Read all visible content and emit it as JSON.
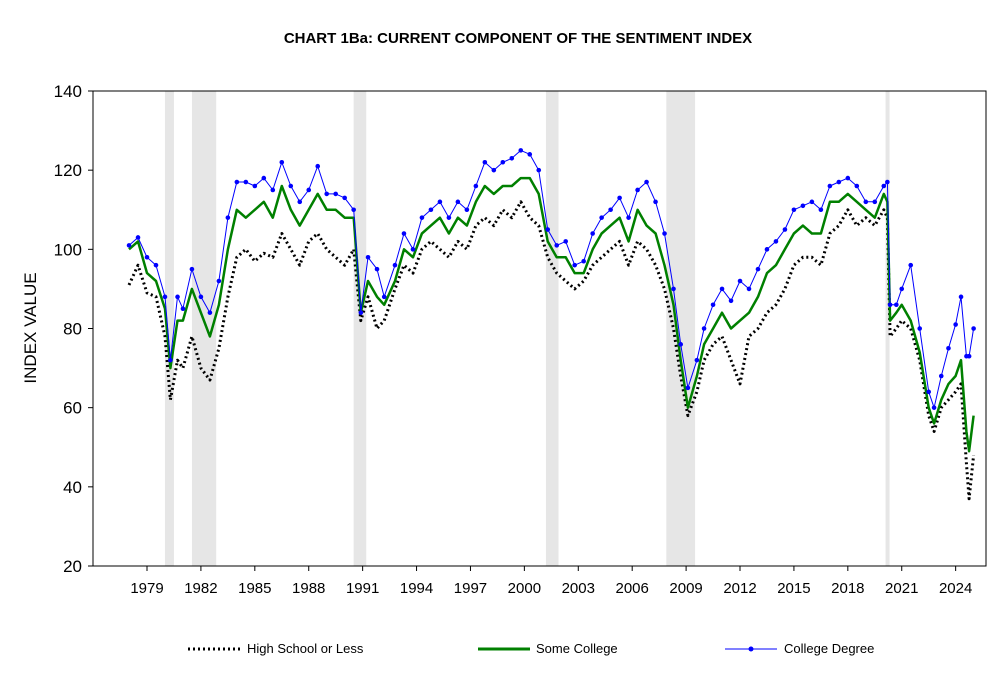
{
  "chart_data": {
    "type": "line",
    "title": "CHART 1Ba: CURRENT COMPONENT OF THE SENTIMENT INDEX",
    "xlabel": "",
    "ylabel": "INDEX VALUE",
    "ylim": [
      20,
      140
    ],
    "yticks": [
      "20",
      "40",
      "60",
      "80",
      "100",
      "120",
      "140"
    ],
    "xticks": [
      "1979",
      "1982",
      "1985",
      "1988",
      "1991",
      "1994",
      "1997",
      "2000",
      "2003",
      "2006",
      "2009",
      "2012",
      "2015",
      "2018",
      "2021",
      "2024"
    ],
    "grid": false,
    "legend_position": "bottom",
    "recessions": [
      [
        1980.0,
        1980.5
      ],
      [
        1981.5,
        1982.85
      ],
      [
        1990.5,
        1991.2
      ],
      [
        2001.2,
        2001.9
      ],
      [
        2007.9,
        2009.5
      ],
      [
        2020.1,
        2020.3
      ]
    ],
    "x": [
      1978.0,
      1978.5,
      1979.0,
      1979.5,
      1980.0,
      1980.3,
      1980.7,
      1981.0,
      1981.5,
      1982.0,
      1982.5,
      1983.0,
      1983.5,
      1984.0,
      1984.5,
      1985.0,
      1985.5,
      1986.0,
      1986.5,
      1987.0,
      1987.5,
      1988.0,
      1988.5,
      1989.0,
      1989.5,
      1990.0,
      1990.5,
      1990.9,
      1991.3,
      1991.8,
      1992.2,
      1992.8,
      1993.3,
      1993.8,
      1994.3,
      1994.8,
      1995.3,
      1995.8,
      1996.3,
      1996.8,
      1997.3,
      1997.8,
      1998.3,
      1998.8,
      1999.3,
      1999.8,
      2000.3,
      2000.8,
      2001.3,
      2001.8,
      2002.3,
      2002.8,
      2003.3,
      2003.8,
      2004.3,
      2004.8,
      2005.3,
      2005.8,
      2006.3,
      2006.8,
      2007.3,
      2007.8,
      2008.3,
      2008.7,
      2009.1,
      2009.6,
      2010.0,
      2010.5,
      2011.0,
      2011.5,
      2012.0,
      2012.5,
      2013.0,
      2013.5,
      2014.0,
      2014.5,
      2015.0,
      2015.5,
      2016.0,
      2016.5,
      2017.0,
      2017.5,
      2018.0,
      2018.5,
      2019.0,
      2019.5,
      2020.0,
      2020.2,
      2020.35,
      2020.7,
      2021.0,
      2021.5,
      2022.0,
      2022.5,
      2022.8,
      2023.2,
      2023.6,
      2024.0,
      2024.3,
      2024.6,
      2024.75,
      2025.0
    ],
    "series": [
      {
        "name": "High School or Less",
        "color": "#000000",
        "style": "dotted",
        "values": [
          91,
          96,
          89,
          88,
          78,
          62,
          72,
          70,
          78,
          70,
          67,
          75,
          88,
          98,
          100,
          97,
          99,
          98,
          104,
          100,
          96,
          102,
          104,
          100,
          98,
          96,
          100,
          82,
          88,
          80,
          82,
          90,
          96,
          94,
          100,
          102,
          100,
          98,
          102,
          100,
          106,
          108,
          106,
          110,
          108,
          112,
          108,
          106,
          98,
          94,
          92,
          90,
          92,
          96,
          98,
          100,
          102,
          96,
          102,
          100,
          96,
          90,
          80,
          68,
          58,
          64,
          72,
          76,
          78,
          72,
          66,
          78,
          80,
          84,
          86,
          90,
          96,
          98,
          98,
          96,
          104,
          106,
          110,
          106,
          108,
          106,
          110,
          108,
          78,
          80,
          82,
          80,
          72,
          58,
          54,
          60,
          62,
          64,
          66,
          46,
          37,
          48
        ]
      },
      {
        "name": "Some College",
        "color": "#008000",
        "style": "solid",
        "values": [
          100,
          102,
          94,
          92,
          85,
          70,
          82,
          82,
          90,
          84,
          78,
          86,
          100,
          110,
          108,
          110,
          112,
          108,
          116,
          110,
          106,
          110,
          114,
          110,
          110,
          108,
          108,
          84,
          92,
          88,
          86,
          92,
          100,
          98,
          104,
          106,
          108,
          104,
          108,
          106,
          112,
          116,
          114,
          116,
          116,
          118,
          118,
          114,
          102,
          98,
          98,
          94,
          94,
          100,
          104,
          106,
          108,
          102,
          110,
          106,
          104,
          96,
          86,
          72,
          60,
          68,
          76,
          80,
          84,
          80,
          82,
          84,
          88,
          94,
          96,
          100,
          104,
          106,
          104,
          104,
          112,
          112,
          114,
          112,
          110,
          108,
          114,
          112,
          82,
          84,
          86,
          82,
          74,
          60,
          56,
          62,
          66,
          68,
          72,
          54,
          49,
          58
        ]
      },
      {
        "name": "College Degree",
        "color": "#0000ff",
        "style": "line-markers",
        "values": [
          101,
          103,
          98,
          96,
          88,
          72,
          88,
          85,
          95,
          88,
          84,
          92,
          108,
          117,
          117,
          116,
          118,
          115,
          122,
          116,
          112,
          115,
          121,
          114,
          114,
          113,
          110,
          84,
          98,
          95,
          88,
          96,
          104,
          100,
          108,
          110,
          112,
          108,
          112,
          110,
          116,
          122,
          120,
          122,
          123,
          125,
          124,
          120,
          105,
          101,
          102,
          96,
          97,
          104,
          108,
          110,
          113,
          108,
          115,
          117,
          112,
          104,
          90,
          76,
          65,
          72,
          80,
          86,
          90,
          87,
          92,
          90,
          95,
          100,
          102,
          105,
          110,
          111,
          112,
          110,
          116,
          117,
          118,
          116,
          112,
          112,
          116,
          117,
          86,
          86,
          90,
          96,
          80,
          64,
          60,
          68,
          75,
          81,
          88,
          73,
          73,
          80
        ]
      }
    ]
  }
}
